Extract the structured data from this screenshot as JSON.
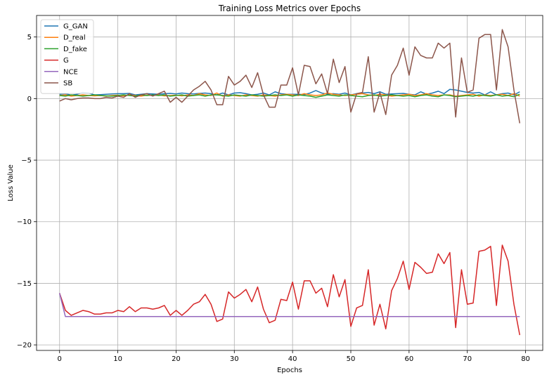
{
  "chart_data": {
    "type": "line",
    "title": "Training Loss Metrics over Epochs",
    "xlabel": "Epochs",
    "ylabel": "Loss Value",
    "xlim": [
      -3.95,
      82.95
    ],
    "ylim": [
      -20.45,
      6.75
    ],
    "xticks": [
      0,
      10,
      20,
      30,
      40,
      50,
      60,
      70,
      80
    ],
    "yticks": [
      -20,
      -15,
      -10,
      -5,
      0,
      5
    ],
    "ytick_labels": [
      "−20",
      "−15",
      "−10",
      "−5",
      "0",
      "5"
    ],
    "grid": true,
    "legend_position": "top-left",
    "x": [
      0,
      1,
      2,
      3,
      4,
      5,
      6,
      7,
      8,
      9,
      10,
      11,
      12,
      13,
      14,
      15,
      16,
      17,
      18,
      19,
      20,
      21,
      22,
      23,
      24,
      25,
      26,
      27,
      28,
      29,
      30,
      31,
      32,
      33,
      34,
      35,
      36,
      37,
      38,
      39,
      40,
      41,
      42,
      43,
      44,
      45,
      46,
      47,
      48,
      49,
      50,
      51,
      52,
      53,
      54,
      55,
      56,
      57,
      58,
      59,
      60,
      61,
      62,
      63,
      64,
      65,
      66,
      67,
      68,
      69,
      70,
      71,
      72,
      73,
      74,
      75,
      76,
      77,
      78,
      79
    ],
    "series": [
      {
        "name": "G_GAN",
        "color": "#1f77b4",
        "values": [
          0.35,
          0.4,
          0.28,
          0.35,
          0.5,
          0.45,
          0.3,
          0.32,
          0.35,
          0.38,
          0.4,
          0.4,
          0.42,
          0.3,
          0.35,
          0.4,
          0.38,
          0.35,
          0.4,
          0.42,
          0.38,
          0.45,
          0.4,
          0.38,
          0.42,
          0.45,
          0.4,
          0.3,
          0.45,
          0.3,
          0.45,
          0.48,
          0.4,
          0.3,
          0.35,
          0.45,
          0.3,
          0.55,
          0.4,
          0.35,
          0.35,
          0.35,
          0.32,
          0.45,
          0.65,
          0.45,
          0.35,
          0.4,
          0.35,
          0.45,
          0.3,
          0.4,
          0.45,
          0.5,
          0.4,
          0.55,
          0.35,
          0.38,
          0.4,
          0.42,
          0.35,
          0.3,
          0.55,
          0.35,
          0.45,
          0.6,
          0.4,
          0.75,
          0.7,
          0.6,
          0.5,
          0.45,
          0.5,
          0.3,
          0.55,
          0.3,
          0.4,
          0.45,
          0.3,
          0.55
        ]
      },
      {
        "name": "D_real",
        "color": "#ff7f0e",
        "values": [
          0.25,
          0.3,
          0.2,
          0.25,
          0.3,
          0.25,
          0.22,
          0.25,
          0.2,
          0.25,
          0.28,
          0.22,
          0.3,
          0.25,
          0.2,
          0.28,
          0.25,
          0.3,
          0.22,
          0.25,
          0.28,
          0.22,
          0.3,
          0.25,
          0.4,
          0.3,
          0.25,
          0.45,
          0.2,
          0.3,
          0.25,
          0.2,
          0.3,
          0.25,
          0.2,
          0.3,
          0.25,
          0.2,
          0.3,
          0.35,
          0.3,
          0.25,
          0.4,
          0.3,
          0.25,
          0.3,
          0.45,
          0.35,
          0.3,
          0.25,
          0.3,
          0.35,
          0.4,
          0.3,
          0.25,
          0.35,
          0.3,
          0.2,
          0.25,
          0.3,
          0.35,
          0.25,
          0.3,
          0.4,
          0.3,
          0.25,
          0.3,
          0.3,
          0.2,
          0.25,
          0.3,
          0.35,
          0.2,
          0.3,
          0.25,
          0.3,
          0.35,
          0.25,
          0.4,
          0.2
        ]
      },
      {
        "name": "D_fake",
        "color": "#2ca02c",
        "values": [
          0.25,
          0.2,
          0.3,
          0.25,
          0.2,
          0.25,
          0.3,
          0.25,
          0.22,
          0.2,
          0.25,
          0.3,
          0.25,
          0.2,
          0.3,
          0.25,
          0.3,
          0.25,
          0.3,
          0.2,
          0.25,
          0.3,
          0.2,
          0.25,
          0.3,
          0.2,
          0.3,
          0.3,
          0.25,
          0.2,
          0.3,
          0.25,
          0.2,
          0.3,
          0.25,
          0.2,
          0.25,
          0.3,
          0.25,
          0.3,
          0.2,
          0.3,
          0.25,
          0.2,
          0.1,
          0.2,
          0.3,
          0.25,
          0.2,
          0.3,
          0.25,
          0.2,
          0.15,
          0.25,
          0.3,
          0.2,
          0.25,
          0.3,
          0.25,
          0.2,
          0.25,
          0.15,
          0.25,
          0.3,
          0.2,
          0.15,
          0.3,
          0.25,
          0.15,
          0.2,
          0.25,
          0.2,
          0.3,
          0.25,
          0.2,
          0.3,
          0.2,
          0.25,
          0.15,
          0.35
        ]
      },
      {
        "name": "G",
        "color": "#d62728",
        "values": [
          -15.8,
          -17.2,
          -17.6,
          -17.4,
          -17.2,
          -17.3,
          -17.5,
          -17.5,
          -17.4,
          -17.4,
          -17.2,
          -17.3,
          -16.9,
          -17.3,
          -17.0,
          -17.0,
          -17.1,
          -17.0,
          -16.8,
          -17.6,
          -17.2,
          -17.6,
          -17.2,
          -16.7,
          -16.5,
          -15.9,
          -16.7,
          -18.1,
          -17.9,
          -15.7,
          -16.2,
          -15.9,
          -15.5,
          -16.5,
          -15.3,
          -17.1,
          -18.2,
          -18.0,
          -16.3,
          -16.4,
          -14.9,
          -17.1,
          -14.8,
          -14.8,
          -15.8,
          -15.4,
          -16.9,
          -14.3,
          -16.1,
          -14.7,
          -18.5,
          -17.0,
          -16.8,
          -13.9,
          -18.4,
          -16.7,
          -18.7,
          -15.6,
          -14.6,
          -13.2,
          -15.5,
          -13.3,
          -13.7,
          -14.2,
          -14.1,
          -12.6,
          -13.4,
          -12.5,
          -18.6,
          -13.9,
          -16.7,
          -16.6,
          -12.4,
          -12.3,
          -12.0,
          -16.8,
          -11.9,
          -13.2,
          -16.7,
          -19.2
        ]
      },
      {
        "name": "NCE",
        "color": "#9467bd",
        "values": [
          -15.8,
          -17.7,
          -17.7,
          -17.7,
          -17.7,
          -17.7,
          -17.7,
          -17.7,
          -17.7,
          -17.7,
          -17.7,
          -17.7,
          -17.7,
          -17.7,
          -17.7,
          -17.7,
          -17.7,
          -17.7,
          -17.7,
          -17.7,
          -17.7,
          -17.7,
          -17.7,
          -17.7,
          -17.7,
          -17.7,
          -17.7,
          -17.7,
          -17.7,
          -17.7,
          -17.7,
          -17.7,
          -17.7,
          -17.7,
          -17.7,
          -17.7,
          -17.7,
          -17.7,
          -17.7,
          -17.7,
          -17.7,
          -17.7,
          -17.7,
          -17.7,
          -17.7,
          -17.7,
          -17.7,
          -17.7,
          -17.7,
          -17.7,
          -17.7,
          -17.7,
          -17.7,
          -17.7,
          -17.7,
          -17.7,
          -17.7,
          -17.7,
          -17.7,
          -17.7,
          -17.7,
          -17.7,
          -17.7,
          -17.7,
          -17.7,
          -17.7,
          -17.7,
          -17.7,
          -17.7,
          -17.7,
          -17.7,
          -17.7,
          -17.7,
          -17.7,
          -17.7,
          -17.7,
          -17.7,
          -17.7,
          -17.7,
          -17.7
        ]
      },
      {
        "name": "SB",
        "color": "#8c564b",
        "values": [
          -0.2,
          0.0,
          -0.1,
          0.0,
          0.05,
          0.05,
          0.0,
          0.0,
          0.1,
          0.05,
          0.2,
          0.1,
          0.4,
          0.1,
          0.3,
          0.4,
          0.2,
          0.4,
          0.6,
          -0.3,
          0.1,
          -0.3,
          0.2,
          0.7,
          1.0,
          1.4,
          0.7,
          -0.5,
          -0.5,
          1.8,
          1.1,
          1.4,
          1.9,
          0.9,
          2.1,
          0.3,
          -0.7,
          -0.7,
          1.1,
          1.1,
          2.5,
          0.3,
          2.7,
          2.6,
          1.2,
          2.0,
          0.4,
          3.2,
          1.3,
          2.6,
          -1.1,
          0.4,
          0.5,
          3.4,
          -1.1,
          0.5,
          -1.3,
          1.9,
          2.7,
          4.1,
          1.9,
          4.2,
          3.5,
          3.3,
          3.3,
          4.5,
          4.1,
          4.5,
          -1.5,
          3.3,
          0.5,
          0.7,
          4.9,
          5.2,
          5.2,
          0.7,
          5.6,
          4.2,
          0.7,
          -2.0
        ]
      }
    ]
  }
}
